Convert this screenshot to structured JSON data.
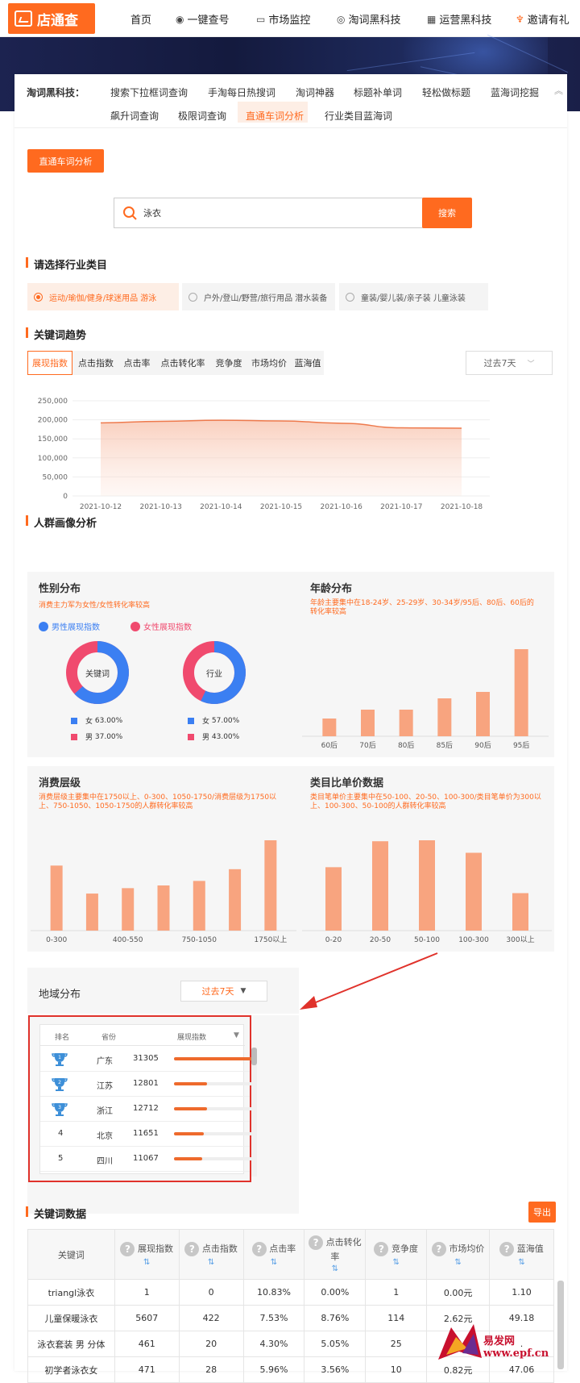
{
  "nav": {
    "logo": "店通查",
    "items": [
      {
        "label": "首页",
        "icon": ""
      },
      {
        "label": "一键查号",
        "icon": "eye-icon"
      },
      {
        "label": "市场监控",
        "icon": "monitor-icon"
      },
      {
        "label": "淘词黑科技",
        "icon": "search-circle-icon"
      },
      {
        "label": "运营黑科技",
        "icon": "grid-icon"
      },
      {
        "label": "邀请有礼",
        "icon": "gift-icon"
      }
    ]
  },
  "subnav": {
    "title": "淘词黑科技：",
    "row1": [
      "搜索下拉框词查询",
      "手淘每日热搜词",
      "淘词神器",
      "标题补单词",
      "轻松做标题",
      "蓝海词挖掘"
    ],
    "row2": [
      "飙升词查询",
      "极限词查询",
      "直通车词分析",
      "行业类目蓝海词"
    ],
    "active": "直通车词分析"
  },
  "page_button": "直通车词分析",
  "search": {
    "value": "泳衣",
    "button": "搜索"
  },
  "industry": {
    "title": "请选择行业类目",
    "options": [
      "运动/瑜伽/健身/球迷用品 游泳",
      "户外/登山/野营/旅行用品 潜水装备",
      "童装/婴儿装/亲子装 儿童泳装"
    ],
    "selected": 0
  },
  "trend": {
    "title": "关键词趋势",
    "tabs": [
      "展现指数",
      "点击指数",
      "点击率",
      "点击转化率",
      "竞争度",
      "市场均价",
      "蓝海值"
    ],
    "active_tab": 0,
    "period": "过去7天",
    "chart_data": {
      "type": "area",
      "x": [
        "2021-10-12",
        "2021-10-13",
        "2021-10-14",
        "2021-10-15",
        "2021-10-16",
        "2021-10-17",
        "2021-10-18"
      ],
      "values": [
        192000,
        196000,
        199000,
        197000,
        191000,
        179000,
        178000
      ],
      "yticks": [
        "250,000",
        "200,000",
        "150,000",
        "100,000",
        "50,000",
        "0"
      ],
      "ylim": [
        0,
        250000
      ]
    }
  },
  "persona": {
    "title": "人群画像分析",
    "gender": {
      "title": "性别分布",
      "note": "消费主力军为女性/女性转化率较高",
      "legend_male": "男性展现指数",
      "legend_female": "女性展现指数",
      "donuts": [
        {
          "center": "关键词",
          "female": "63.00%",
          "male": "37.00%",
          "female_pct": 63
        },
        {
          "center": "行业",
          "female": "57.00%",
          "male": "43.00%",
          "female_pct": 57
        }
      ],
      "label_female": "女",
      "label_male": "男"
    },
    "age": {
      "title": "年龄分布",
      "note": "年龄主要集中在18-24岁、25-29岁、30-34岁/95后、80后、60后的转化率较高",
      "chart_data": {
        "type": "bar",
        "categories": [
          "60后",
          "70后",
          "80后",
          "85后",
          "90后",
          "95后"
        ],
        "values": [
          22,
          33,
          33,
          47,
          55,
          108
        ]
      }
    },
    "consume": {
      "title": "消费层级",
      "note": "消费层级主要集中在1750以上、0-300、1050-1750/消费层级为1750以上、750-1050、1050-1750的人群转化率较高",
      "chart_data": {
        "type": "bar",
        "categories": [
          "0-300",
          "",
          "400-550",
          "",
          "750-1050",
          "",
          "1750以上"
        ],
        "values": [
          72,
          41,
          47,
          50,
          55,
          68,
          100
        ]
      }
    },
    "unitprice": {
      "title": "类目比单价数据",
      "note": "类目笔单价主要集中在50-100、20-50、100-300/类目笔单价为300以上、100-300、50-100的人群转化率较高",
      "chart_data": {
        "type": "bar",
        "categories": [
          "0-20",
          "20-50",
          "50-100",
          "100-300",
          "300以上"
        ],
        "values": [
          66,
          93,
          94,
          81,
          39
        ]
      }
    }
  },
  "region": {
    "title": "地域分布",
    "period": "过去7天",
    "headers": [
      "排名",
      "省份",
      "展现指数"
    ],
    "rows": [
      {
        "rank": "1",
        "province": "广东",
        "value": "31305",
        "pct": 100
      },
      {
        "rank": "2",
        "province": "江苏",
        "value": "12801",
        "pct": 41
      },
      {
        "rank": "3",
        "province": "浙江",
        "value": "12712",
        "pct": 41
      },
      {
        "rank": "4",
        "province": "北京",
        "value": "11651",
        "pct": 37
      },
      {
        "rank": "5",
        "province": "四川",
        "value": "11067",
        "pct": 35
      }
    ]
  },
  "kwdata": {
    "title": "关键词数据",
    "export": "导出",
    "headers": [
      "关键词",
      "展现指数",
      "点击指数",
      "点击率",
      "点击转化率",
      "竞争度",
      "市场均价",
      "蓝海值"
    ],
    "rows": [
      [
        "triangl泳衣",
        "1",
        "0",
        "10.83%",
        "0.00%",
        "1",
        "0.00元",
        "1.10"
      ],
      [
        "儿童保暖泳衣",
        "5607",
        "422",
        "7.53%",
        "8.76%",
        "114",
        "2.62元",
        "49.18"
      ],
      [
        "泳衣套装 男 分体",
        "461",
        "20",
        "4.30%",
        "5.05%",
        "25",
        "",
        "."
      ],
      [
        "初学者泳衣女",
        "471",
        "28",
        "5.96%",
        "3.56%",
        "10",
        "0.82元",
        "47.06"
      ]
    ]
  },
  "watermark": "易发网 www.epf.cn",
  "colors": {
    "accent": "#ff6a1f",
    "male": "#3b7ff2",
    "female": "#f04a6e",
    "bar": "#f8a47f"
  }
}
